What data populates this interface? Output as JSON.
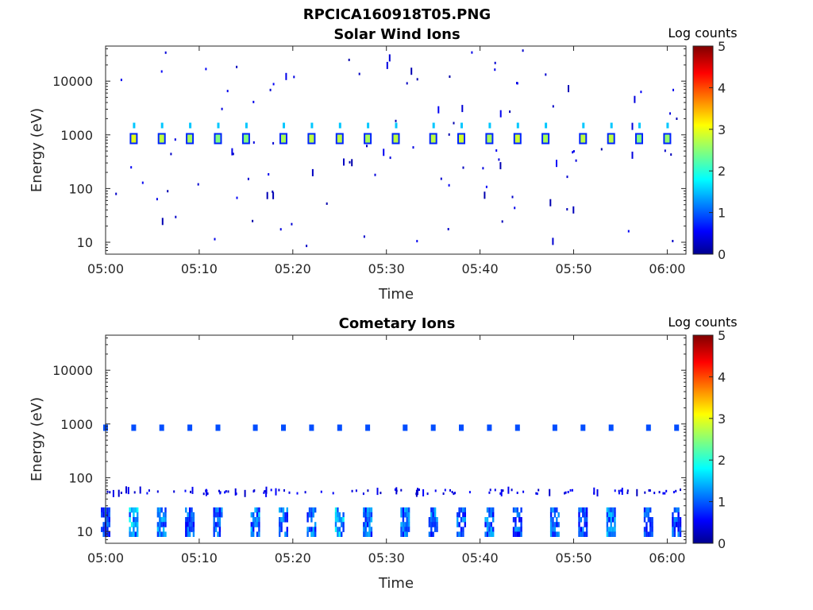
{
  "figure_title": "RPCICA160918T05.PNG",
  "chart_data": [
    {
      "type": "heatmap",
      "title": "Solar Wind Ions",
      "xlabel": "Time",
      "ylabel": "Energy (eV)",
      "xticks": [
        "05:00",
        "05:10",
        "05:20",
        "05:30",
        "05:40",
        "05:50",
        "06:00"
      ],
      "xlim": [
        "05:00",
        "06:02"
      ],
      "yscale": "log",
      "yticks": [
        10,
        100,
        1000,
        10000
      ],
      "ytick_labels": [
        "10",
        "100",
        "1000",
        "10000"
      ],
      "ylim": [
        6,
        45000
      ],
      "colorbar": {
        "label": "Log counts",
        "range": [
          0,
          5
        ],
        "ticks": [
          "0",
          "1",
          "2",
          "3",
          "4",
          "5"
        ],
        "colormap": "jet"
      },
      "bursts": [
        {
          "t": "05:03",
          "energy": 850,
          "log_counts": 3
        },
        {
          "t": "05:06",
          "energy": 850,
          "log_counts": 2.8
        },
        {
          "t": "05:09",
          "energy": 850,
          "log_counts": 2.7
        },
        {
          "t": "05:12",
          "energy": 850,
          "log_counts": 2.5
        },
        {
          "t": "05:15",
          "energy": 850,
          "log_counts": 2.5
        },
        {
          "t": "05:19",
          "energy": 850,
          "log_counts": 2.7
        },
        {
          "t": "05:22",
          "energy": 850,
          "log_counts": 2.8
        },
        {
          "t": "05:25",
          "energy": 850,
          "log_counts": 2.8
        },
        {
          "t": "05:28",
          "energy": 850,
          "log_counts": 2.7
        },
        {
          "t": "05:31",
          "energy": 850,
          "log_counts": 2.8
        },
        {
          "t": "05:35",
          "energy": 850,
          "log_counts": 2.8
        },
        {
          "t": "05:38",
          "energy": 850,
          "log_counts": 2.9
        },
        {
          "t": "05:41",
          "energy": 850,
          "log_counts": 2.7
        },
        {
          "t": "05:44",
          "energy": 850,
          "log_counts": 2.9
        },
        {
          "t": "05:47",
          "energy": 850,
          "log_counts": 2.7
        },
        {
          "t": "05:51",
          "energy": 850,
          "log_counts": 2.8
        },
        {
          "t": "05:54",
          "energy": 850,
          "log_counts": 2.8
        },
        {
          "t": "05:57",
          "energy": 850,
          "log_counts": 2.5
        },
        {
          "t": "06:00",
          "energy": 850,
          "log_counts": 2.6
        }
      ],
      "background_counts": {
        "energy_range": [
          8,
          40000
        ],
        "log_counts": 0.2
      }
    },
    {
      "type": "heatmap",
      "title": "Cometary Ions",
      "xlabel": "Time",
      "ylabel": "Energy (eV)",
      "xticks": [
        "05:00",
        "05:10",
        "05:20",
        "05:30",
        "05:40",
        "05:50",
        "06:00"
      ],
      "xlim": [
        "05:00",
        "06:02"
      ],
      "yscale": "log",
      "yticks": [
        10,
        100,
        1000,
        10000
      ],
      "ytick_labels": [
        "10",
        "100",
        "1000",
        "10000"
      ],
      "ylim": [
        6,
        45000
      ],
      "colorbar": {
        "label": "Log counts",
        "range": [
          0,
          5
        ],
        "ticks": [
          "0",
          "1",
          "2",
          "3",
          "4",
          "5"
        ],
        "colormap": "jet"
      },
      "bursts": [
        {
          "t": "05:00",
          "energy_low": 8,
          "energy_high": 28,
          "log_counts": 1.2
        },
        {
          "t": "05:03",
          "energy_low": 8,
          "energy_high": 28,
          "log_counts": 1.8
        },
        {
          "t": "05:06",
          "energy_low": 8,
          "energy_high": 28,
          "log_counts": 1.5
        },
        {
          "t": "05:09",
          "energy_low": 8,
          "energy_high": 28,
          "log_counts": 1.3
        },
        {
          "t": "05:12",
          "energy_low": 8,
          "energy_high": 28,
          "log_counts": 1.3
        },
        {
          "t": "05:16",
          "energy_low": 8,
          "energy_high": 28,
          "log_counts": 1.5
        },
        {
          "t": "05:19",
          "energy_low": 8,
          "energy_high": 28,
          "log_counts": 1.4
        },
        {
          "t": "05:22",
          "energy_low": 8,
          "energy_high": 28,
          "log_counts": 1.4
        },
        {
          "t": "05:25",
          "energy_low": 8,
          "energy_high": 28,
          "log_counts": 1.8
        },
        {
          "t": "05:28",
          "energy_low": 8,
          "energy_high": 28,
          "log_counts": 1.5
        },
        {
          "t": "05:32",
          "energy_low": 8,
          "energy_high": 28,
          "log_counts": 1.4
        },
        {
          "t": "05:35",
          "energy_low": 8,
          "energy_high": 28,
          "log_counts": 1.4
        },
        {
          "t": "05:38",
          "energy_low": 8,
          "energy_high": 28,
          "log_counts": 1.4
        },
        {
          "t": "05:41",
          "energy_low": 8,
          "energy_high": 28,
          "log_counts": 1.4
        },
        {
          "t": "05:44",
          "energy_low": 8,
          "energy_high": 28,
          "log_counts": 1.3
        },
        {
          "t": "05:48",
          "energy_low": 8,
          "energy_high": 28,
          "log_counts": 1.3
        },
        {
          "t": "05:51",
          "energy_low": 8,
          "energy_high": 28,
          "log_counts": 1.3
        },
        {
          "t": "05:54",
          "energy_low": 8,
          "energy_high": 28,
          "log_counts": 1.5
        },
        {
          "t": "05:58",
          "energy_low": 8,
          "energy_high": 28,
          "log_counts": 1.2
        },
        {
          "t": "06:01",
          "energy_low": 8,
          "energy_high": 28,
          "log_counts": 1.2
        }
      ],
      "secondary_band": {
        "energy": 850,
        "log_counts": 1.0
      },
      "background_counts": {
        "energy_range": [
          50,
          60
        ],
        "log_counts": 0.3
      }
    }
  ]
}
